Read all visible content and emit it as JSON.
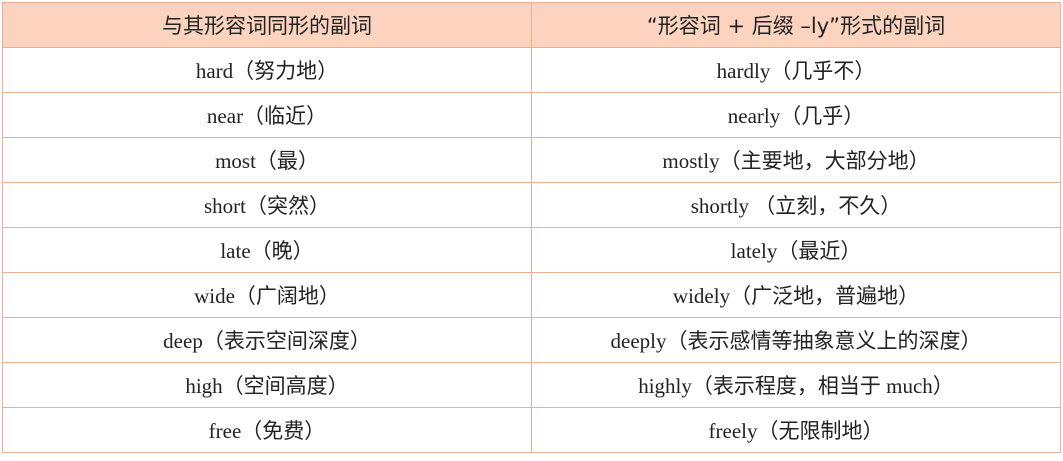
{
  "table": {
    "header": [
      "与其形容词同形的副词",
      "“形容词 + 后缀 –ly”形式的副词"
    ],
    "rows": [
      [
        "hard（努力地）",
        "hardly（几乎不）"
      ],
      [
        "near（临近）",
        "nearly（几乎）"
      ],
      [
        "most（最）",
        "mostly（主要地，大部分地）"
      ],
      [
        "short（突然）",
        "shortly （立刻，不久）"
      ],
      [
        "late（晚）",
        "lately（最近）"
      ],
      [
        "wide（广阔地）",
        "widely（广泛地，普遍地）"
      ],
      [
        "deep（表示空间深度）",
        "deeply（表示感情等抽象意义上的深度）"
      ],
      [
        "high（空间高度）",
        "highly（表示程度，相当于 much）"
      ],
      [
        "free（免费）",
        "freely（无限制地）"
      ]
    ]
  }
}
